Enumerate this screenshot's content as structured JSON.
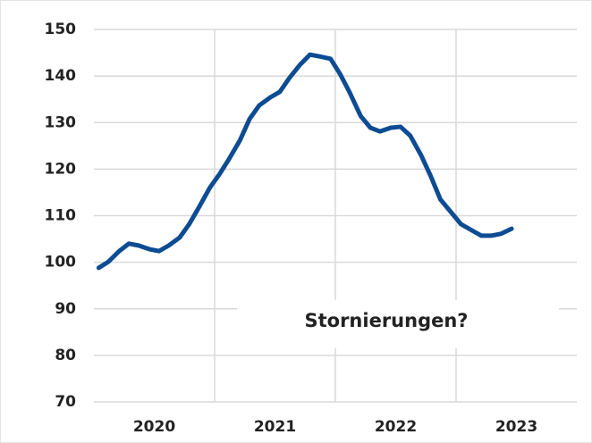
{
  "chart_data": {
    "type": "line",
    "annotation": "Stornierungen?",
    "x": [
      2020.04,
      2020.12,
      2020.21,
      2020.29,
      2020.37,
      2020.46,
      2020.54,
      2020.62,
      2020.71,
      2020.79,
      2020.87,
      2020.96,
      2021.04,
      2021.12,
      2021.21,
      2021.29,
      2021.37,
      2021.46,
      2021.54,
      2021.62,
      2021.71,
      2021.79,
      2021.87,
      2021.96,
      2022.04,
      2022.12,
      2022.21,
      2022.29,
      2022.37,
      2022.46,
      2022.54,
      2022.62,
      2022.71,
      2022.79,
      2022.87,
      2022.96,
      2023.04,
      2023.12,
      2023.21,
      2023.29,
      2023.37,
      2023.46
    ],
    "series": [
      {
        "color": "#0d4c92",
        "values": [
          98.8,
          100.1,
          102.4,
          104,
          103.6,
          102.8,
          102.4,
          103.6,
          105.3,
          108.2,
          111.8,
          116,
          118.9,
          122.2,
          126.2,
          130.8,
          133.7,
          135.4,
          136.6,
          139.6,
          142.5,
          144.6,
          144.2,
          143.7,
          140.4,
          136.4,
          131.4,
          128.9,
          128.1,
          128.9,
          129.1,
          127.2,
          123,
          118.5,
          113.5,
          110.7,
          108.2,
          107,
          105.7,
          105.7,
          106.1,
          107.2
        ]
      }
    ],
    "xlim": [
      2020,
      2024
    ],
    "xticks": [
      {
        "value": 2020,
        "label": "2020"
      },
      {
        "value": 2021,
        "label": "2021"
      },
      {
        "value": 2022,
        "label": "2022"
      },
      {
        "value": 2023,
        "label": "2023"
      }
    ],
    "ylim": [
      70,
      150
    ],
    "yticks": [
      70,
      80,
      90,
      100,
      110,
      120,
      130,
      140,
      150
    ],
    "grid": true
  }
}
